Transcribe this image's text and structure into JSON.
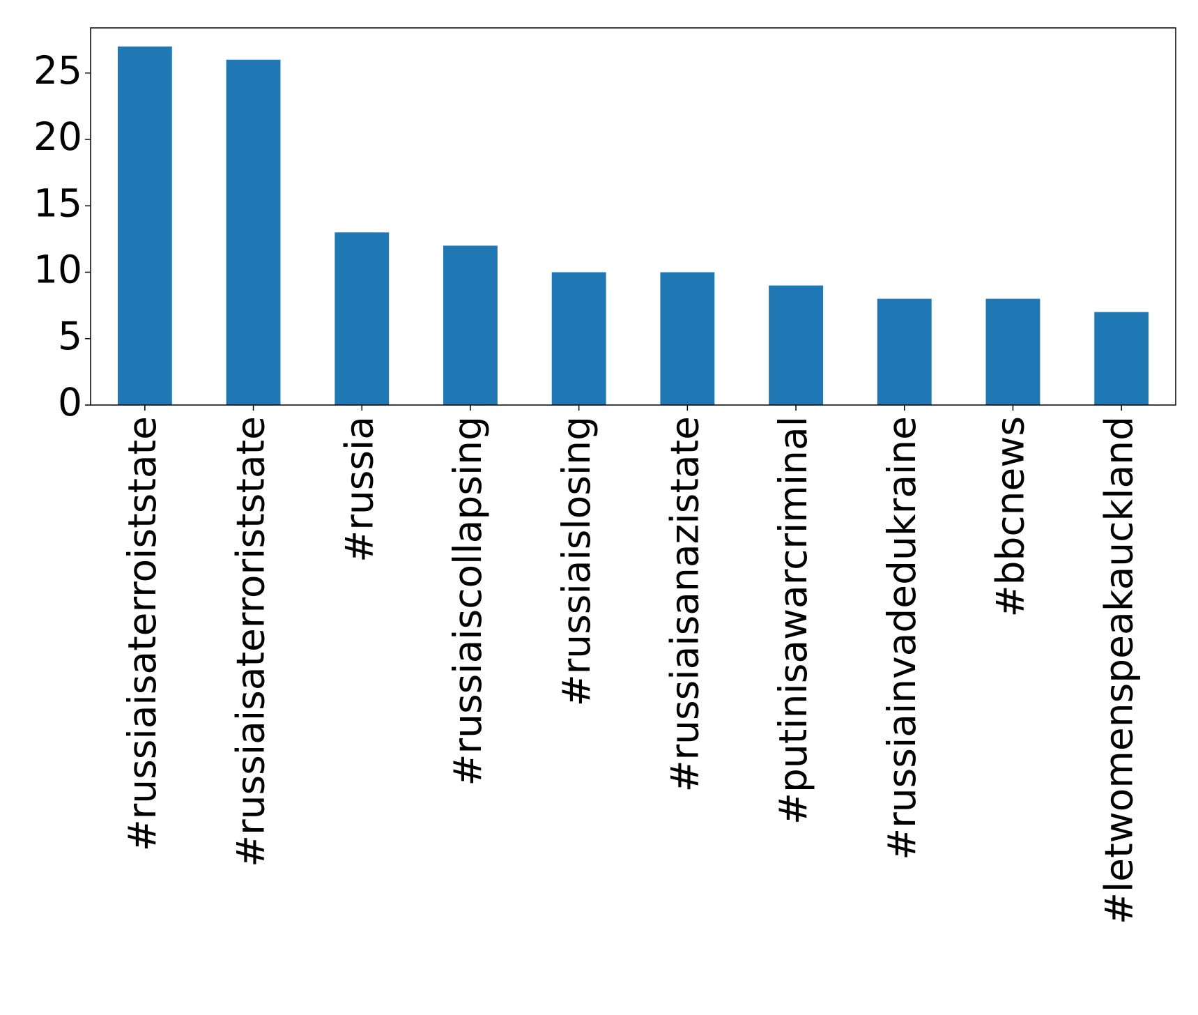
{
  "chart_data": {
    "type": "bar",
    "categories": [
      "#russiaisaterroiststate",
      "#russiaisaterroriststate",
      "#russia",
      "#russiaiscollapsing",
      "#russiaislosing",
      "#russiaisanazistate",
      "#putinisawarcriminal",
      "#russiainvadedukraine",
      "#bbcnews",
      "#letwomenspeakauckland"
    ],
    "values": [
      27,
      26,
      13,
      12,
      10,
      10,
      9,
      8,
      8,
      7
    ],
    "color": "#1f77b4",
    "ylim": [
      0,
      28.4
    ],
    "yticks": [
      0,
      5,
      10,
      15,
      20,
      25
    ],
    "grid": false
  }
}
